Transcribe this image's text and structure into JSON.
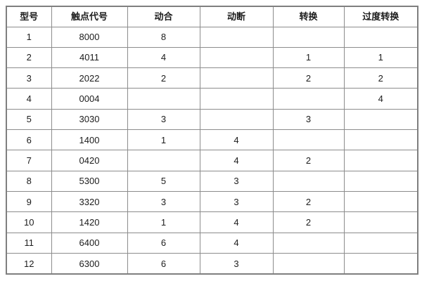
{
  "colors": {
    "background": "#ffffff",
    "border_inner": "#8c8c8c",
    "border_outer": "#7f7f7f",
    "text": "#1c1c1c"
  },
  "table": {
    "headers": [
      "型号",
      "触点代号",
      "动合",
      "动断",
      "转换",
      "过度转换"
    ],
    "rows": [
      [
        "1",
        "8000",
        "8",
        "",
        "",
        ""
      ],
      [
        "2",
        "4011",
        "4",
        "",
        "1",
        "1"
      ],
      [
        "3",
        "2022",
        "2",
        "",
        "2",
        "2"
      ],
      [
        "4",
        "0004",
        "",
        "",
        "",
        "4"
      ],
      [
        "5",
        "3030",
        "3",
        "",
        "3",
        ""
      ],
      [
        "6",
        "1400",
        "1",
        "4",
        "",
        ""
      ],
      [
        "7",
        "0420",
        "",
        "4",
        "2",
        ""
      ],
      [
        "8",
        "5300",
        "5",
        "3",
        "",
        ""
      ],
      [
        "9",
        "3320",
        "3",
        "3",
        "2",
        ""
      ],
      [
        "10",
        "1420",
        "1",
        "4",
        "2",
        ""
      ],
      [
        "11",
        "6400",
        "6",
        "4",
        "",
        ""
      ],
      [
        "12",
        "6300",
        "6",
        "3",
        "",
        ""
      ]
    ]
  }
}
